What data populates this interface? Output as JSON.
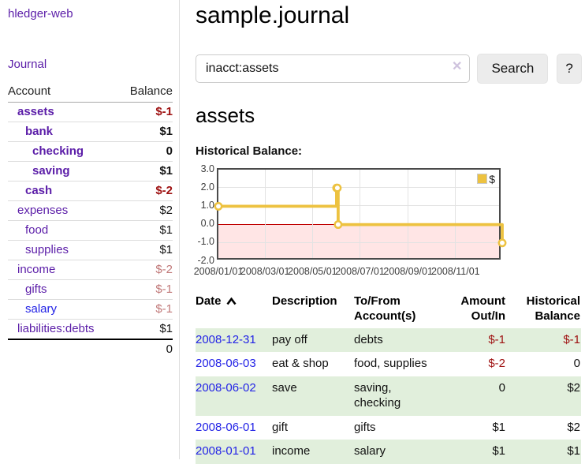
{
  "sidebar": {
    "brand": "hledger-web",
    "journal_link": "Journal",
    "accounts": {
      "col_account": "Account",
      "col_balance": "Balance",
      "rows": [
        {
          "name": "assets",
          "balance": "$-1"
        },
        {
          "name": "bank",
          "balance": "$1"
        },
        {
          "name": "checking",
          "balance": "0"
        },
        {
          "name": "saving",
          "balance": "$1"
        },
        {
          "name": "cash",
          "balance": "$-2"
        },
        {
          "name": "expenses",
          "balance": "$2"
        },
        {
          "name": "food",
          "balance": "$1"
        },
        {
          "name": "supplies",
          "balance": "$1"
        },
        {
          "name": "income",
          "balance": "$-2"
        },
        {
          "name": "gifts",
          "balance": "$-1"
        },
        {
          "name": "salary",
          "balance": "$-1"
        },
        {
          "name": "liabilities:debts",
          "balance": "$1"
        }
      ],
      "total": "0"
    }
  },
  "page": {
    "title": "sample.journal"
  },
  "search": {
    "value": "inacct:assets",
    "clear_icon": "✕",
    "search_label": "Search",
    "help_label": "?"
  },
  "account": {
    "heading": "assets",
    "chart_title": "Historical Balance:"
  },
  "chart_data": {
    "type": "line",
    "title": "Historical Balance:",
    "series": [
      {
        "name": "$",
        "color": "#edc240",
        "steps": true,
        "points": [
          {
            "x": "2008-01-01",
            "y": 1
          },
          {
            "x": "2008-06-01",
            "y": 2
          },
          {
            "x": "2008-06-02",
            "y": 2
          },
          {
            "x": "2008-06-03",
            "y": 0
          },
          {
            "x": "2008-12-31",
            "y": -1
          }
        ]
      }
    ],
    "xrange": [
      "2008-01-01",
      "2008-12-31"
    ],
    "ylim": [
      -2,
      3
    ],
    "yticks": [
      {
        "v": 3,
        "label": "3.0"
      },
      {
        "v": 2,
        "label": "2.0"
      },
      {
        "v": 1,
        "label": "1.0"
      },
      {
        "v": 0,
        "label": "0.0"
      },
      {
        "v": -1,
        "label": "-1.0"
      },
      {
        "v": -2,
        "label": "-2.0"
      }
    ],
    "xticks": [
      {
        "x": "2008-01-01",
        "label": "2008/01/01"
      },
      {
        "x": "2008-03-01",
        "label": "2008/03/01"
      },
      {
        "x": "2008-05-01",
        "label": "2008/05/01"
      },
      {
        "x": "2008-07-01",
        "label": "2008/07/01"
      },
      {
        "x": "2008-09-01",
        "label": "2008/09/01"
      },
      {
        "x": "2008-11-01",
        "label": "2008/11/01"
      }
    ],
    "legend": {
      "label": "$",
      "position": "top-right"
    },
    "grid": true,
    "negative_region_color": "#ffe5e5",
    "zero_line_color": "#c00000"
  },
  "register": {
    "headers": {
      "date": "Date",
      "description": "Description",
      "accounts": "To/From Account(s)",
      "amount": "Amount Out/In",
      "balance": "Historical Balance"
    },
    "rows": [
      {
        "date": "2008-12-31",
        "description": "pay off",
        "accounts": "debts",
        "amount": "$-1",
        "balance": "$-1"
      },
      {
        "date": "2008-06-03",
        "description": "eat & shop",
        "accounts": "food, supplies",
        "amount": "$-2",
        "balance": "0"
      },
      {
        "date": "2008-06-02",
        "description": "save",
        "accounts": "saving, checking",
        "amount": "0",
        "balance": "$2"
      },
      {
        "date": "2008-06-01",
        "description": "gift",
        "accounts": "gifts",
        "amount": "$1",
        "balance": "$2"
      },
      {
        "date": "2008-01-01",
        "description": "income",
        "accounts": "salary",
        "amount": "$1",
        "balance": "$1"
      }
    ]
  }
}
